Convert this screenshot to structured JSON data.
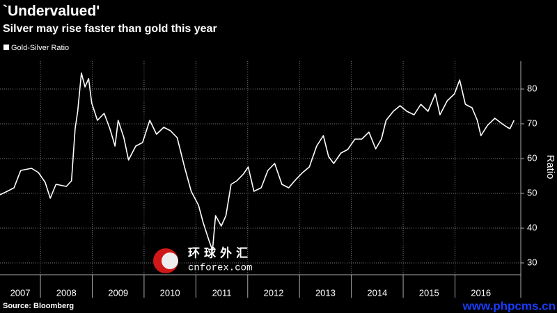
{
  "chart_data": {
    "type": "line",
    "title": "`Undervalued'",
    "subtitle": "Silver may rise faster than gold this year",
    "y_axis_label": "Ratio",
    "source": "Source: Bloomberg",
    "watermarks": [
      "环球外汇",
      "cnforex.com",
      "www.phpcms.cn"
    ],
    "x": [
      2007.22,
      2007.36,
      2007.49,
      2007.62,
      2007.83,
      2007.96,
      2008.09,
      2008.19,
      2008.3,
      2008.5,
      2008.6,
      2008.67,
      2008.72,
      2008.79,
      2008.86,
      2008.93,
      2008.99,
      2009.1,
      2009.23,
      2009.34,
      2009.44,
      2009.5,
      2009.61,
      2009.7,
      2009.84,
      2009.97,
      2010.11,
      2010.24,
      2010.38,
      2010.51,
      2010.64,
      2010.78,
      2010.91,
      2011.05,
      2011.14,
      2011.25,
      2011.32,
      2011.38,
      2011.49,
      2011.58,
      2011.68,
      2011.79,
      2011.92,
      2012.01,
      2012.12,
      2012.26,
      2012.39,
      2012.52,
      2012.66,
      2012.79,
      2012.93,
      2013.06,
      2013.19,
      2013.33,
      2013.46,
      2013.56,
      2013.66,
      2013.8,
      2013.93,
      2014.07,
      2014.2,
      2014.34,
      2014.47,
      2014.58,
      2014.67,
      2014.81,
      2014.94,
      2015.07,
      2015.21,
      2015.34,
      2015.48,
      2015.62,
      2015.71,
      2015.85,
      2015.99,
      2016.09,
      2016.2,
      2016.33,
      2016.43,
      2016.5,
      2016.63,
      2016.77,
      2016.91,
      2017.01,
      2017.06,
      2017.14
    ],
    "series": [
      {
        "name": "Gold-Silver Ratio",
        "color": "#ffffff",
        "values": [
          49.6,
          50.6,
          51.6,
          56.6,
          57.2,
          56,
          53.2,
          48.6,
          52.6,
          52,
          53.6,
          68.6,
          73.6,
          84.6,
          80.6,
          83,
          76,
          71,
          73,
          68.6,
          63.6,
          71,
          66,
          59.6,
          63.6,
          64.6,
          71,
          67,
          69,
          68,
          66,
          57.6,
          50.6,
          46.6,
          41.6,
          36.6,
          33.6,
          43.6,
          40.6,
          43.6,
          52.6,
          53.6,
          55.6,
          57.6,
          50.6,
          51.6,
          56.6,
          58.6,
          52.6,
          51.6,
          54,
          56,
          57.6,
          63.6,
          66.6,
          60.6,
          58.6,
          61.6,
          62.6,
          65.6,
          65.6,
          67.6,
          62.8,
          65.6,
          71,
          73.6,
          75.2,
          73.6,
          72.6,
          75.6,
          73.6,
          78.6,
          72.6,
          76.6,
          78.6,
          82.6,
          75.6,
          74.6,
          71,
          66.6,
          69.6,
          71.6,
          70,
          69,
          68.6,
          71
        ]
      }
    ],
    "xlim": [
      2007.22,
      2017.27
    ],
    "xticks": [
      2007,
      2008,
      2009,
      2010,
      2011,
      2012,
      2013,
      2014,
      2015,
      2016
    ],
    "ylim": [
      26.6,
      88
    ],
    "yticks": [
      30,
      40,
      50,
      60,
      70,
      80
    ],
    "grid": true
  }
}
